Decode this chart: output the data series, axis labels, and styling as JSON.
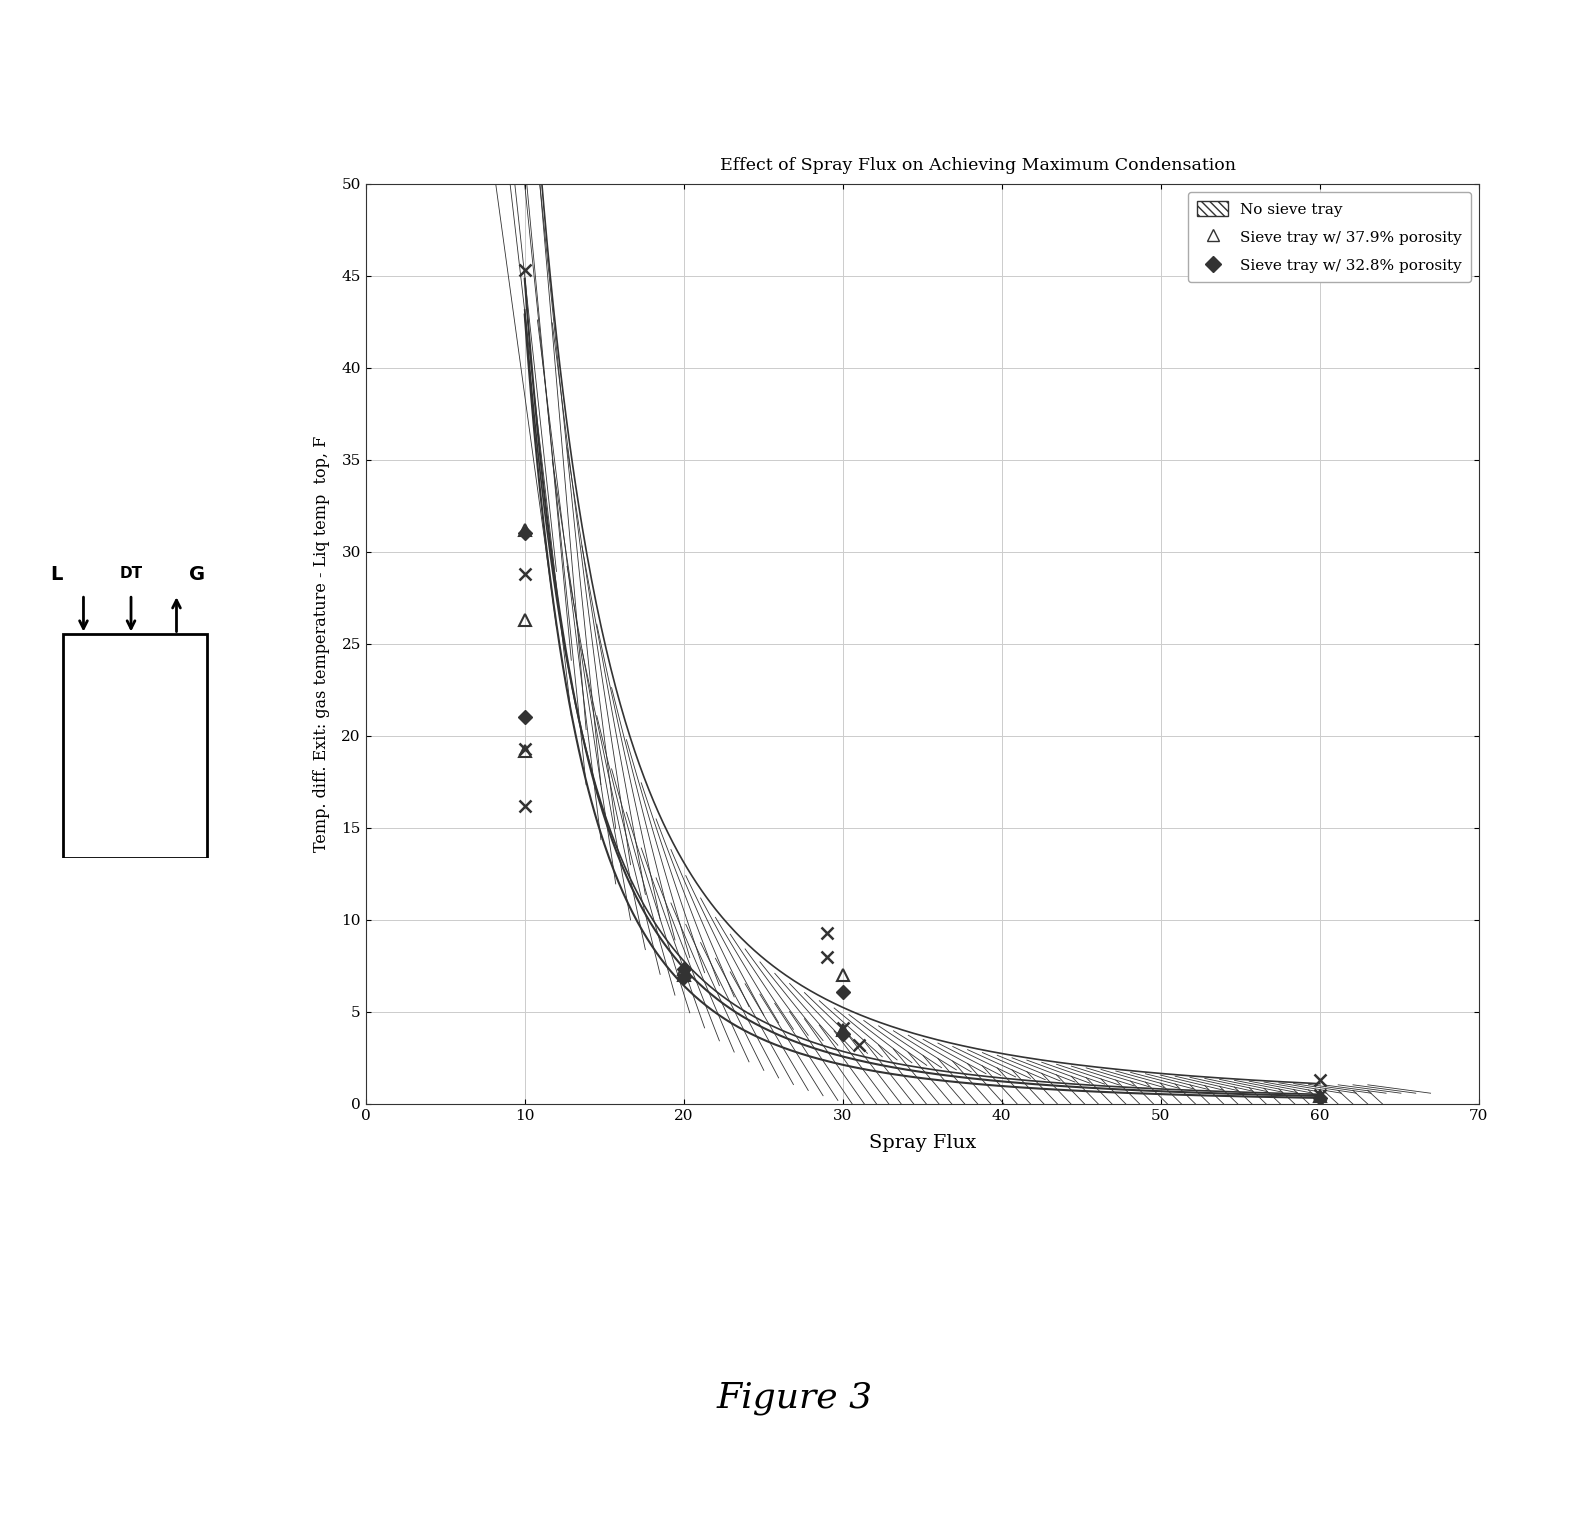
{
  "title": "Effect of Spray Flux on Achieving Maximum Condensation",
  "xlabel": "Spray Flux",
  "ylabel": "Temp. diff. Exit: gas temperature - Liq temp  top, F",
  "xlim": [
    0,
    70
  ],
  "ylim": [
    0,
    50
  ],
  "xticks": [
    0,
    10,
    20,
    30,
    40,
    50,
    60,
    70
  ],
  "yticks": [
    0,
    5,
    10,
    15,
    20,
    25,
    30,
    35,
    40,
    45,
    50
  ],
  "figure_label": "Figure 3",
  "no_sieve_inner_curve_x": [
    10,
    12,
    14,
    16,
    18,
    20,
    22,
    25,
    30,
    35,
    40,
    50,
    60
  ],
  "no_sieve_inner_curve_y": [
    31.5,
    24.0,
    18.5,
    14.5,
    11.5,
    9.0,
    7.2,
    5.2,
    3.2,
    2.1,
    1.4,
    0.7,
    0.4
  ],
  "no_sieve_outer_curve_x": [
    10,
    12,
    14,
    16,
    18,
    20,
    22,
    25,
    30,
    35,
    40,
    50,
    60
  ],
  "no_sieve_outer_curve_y": [
    45.0,
    36.0,
    29.0,
    23.5,
    19.0,
    15.5,
    12.5,
    9.3,
    6.0,
    4.0,
    2.7,
    1.5,
    0.8
  ],
  "no_sieve_scatter_x": [
    10,
    10,
    10,
    10,
    29,
    29,
    30,
    31,
    60,
    60
  ],
  "no_sieve_scatter_y": [
    45.3,
    28.8,
    19.3,
    16.2,
    9.3,
    8.0,
    4.1,
    3.2,
    1.3,
    0.5
  ],
  "sieve_379_curve_x": [
    10,
    12,
    14,
    16,
    18,
    20,
    22,
    25,
    30,
    35,
    40,
    50,
    60
  ],
  "sieve_379_curve_y": [
    32.0,
    24.2,
    18.5,
    14.2,
    11.0,
    8.5,
    6.7,
    4.8,
    3.0,
    1.9,
    1.3,
    0.6,
    0.3
  ],
  "sieve_379_scatter_x": [
    10,
    10,
    10,
    20,
    20,
    30,
    30,
    60
  ],
  "sieve_379_scatter_y": [
    31.2,
    26.3,
    19.2,
    7.3,
    7.0,
    7.0,
    4.0,
    0.4
  ],
  "sieve_328_curve_x": [
    10,
    12,
    14,
    16,
    18,
    20,
    22,
    25,
    30,
    35,
    40,
    50,
    60
  ],
  "sieve_328_curve_y": [
    29.5,
    22.0,
    16.8,
    12.8,
    9.8,
    7.5,
    5.9,
    4.2,
    2.5,
    1.6,
    1.0,
    0.5,
    0.2
  ],
  "sieve_328_scatter_x": [
    10,
    10,
    20,
    20,
    30,
    30,
    60
  ],
  "sieve_328_scatter_y": [
    31.0,
    21.0,
    7.3,
    6.9,
    6.1,
    3.8,
    0.3
  ],
  "line_color": "#333333",
  "bg_color": "#ffffff",
  "grid_color": "#cccccc"
}
